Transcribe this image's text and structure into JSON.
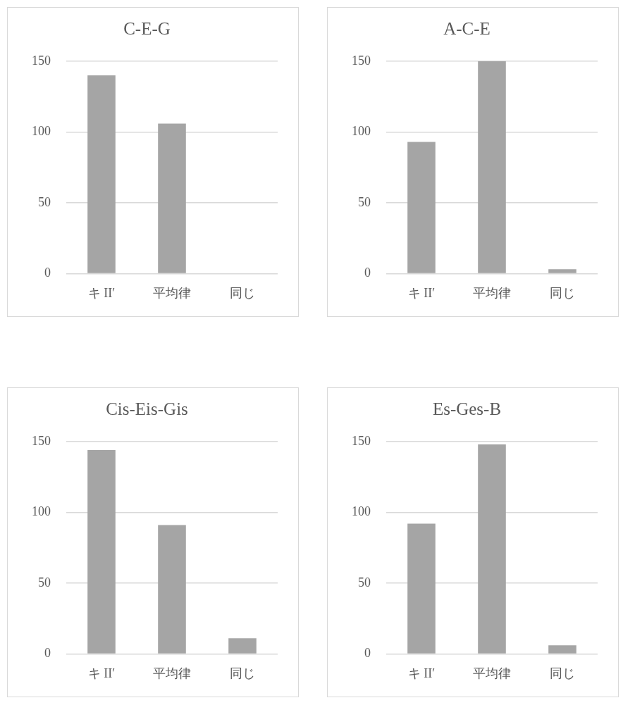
{
  "chart_data": [
    {
      "type": "bar",
      "title": "C-E-G",
      "categories": [
        "キ II′",
        "平均律",
        "同じ"
      ],
      "values": [
        140,
        106,
        0
      ],
      "color": "#a5a5a5",
      "ylim": [
        0,
        150
      ],
      "yticks": [
        0,
        50,
        100,
        150
      ],
      "grid": "y"
    },
    {
      "type": "bar",
      "title": "A-C-E",
      "categories": [
        "キ II′",
        "平均律",
        "同じ"
      ],
      "values": [
        93,
        150,
        3
      ],
      "color": "#a5a5a5",
      "ylim": [
        0,
        150
      ],
      "yticks": [
        0,
        50,
        100,
        150
      ],
      "grid": "y"
    },
    {
      "type": "bar",
      "title": "Cis-Eis-Gis",
      "categories": [
        "キ II′",
        "平均律",
        "同じ"
      ],
      "values": [
        144,
        91,
        11
      ],
      "color": "#a5a5a5",
      "ylim": [
        0,
        150
      ],
      "yticks": [
        0,
        50,
        100,
        150
      ],
      "grid": "y"
    },
    {
      "type": "bar",
      "title": "Es-Ges-B",
      "categories": [
        "キ II′",
        "平均律",
        "同じ"
      ],
      "values": [
        92,
        148,
        6
      ],
      "color": "#a5a5a5",
      "ylim": [
        0,
        150
      ],
      "yticks": [
        0,
        50,
        100,
        150
      ],
      "grid": "y"
    }
  ]
}
